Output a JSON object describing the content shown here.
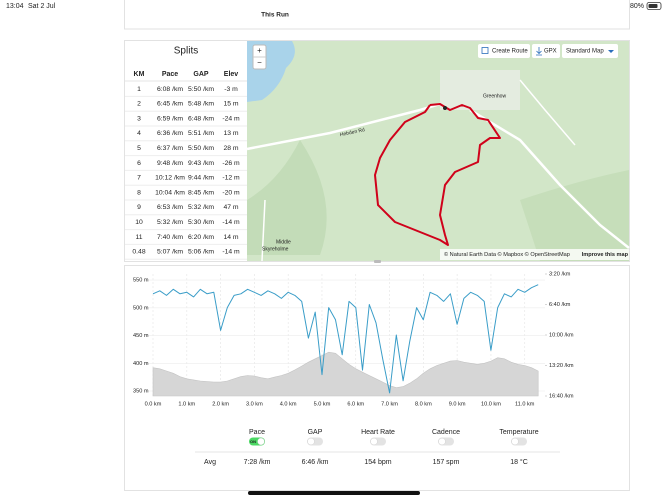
{
  "status_bar": {
    "time": "13:04",
    "date": "Sat 2 Jul",
    "battery": "80%"
  },
  "header": {
    "title": "This Run"
  },
  "splits": {
    "title": "Splits",
    "columns": [
      "KM",
      "Pace",
      "GAP",
      "Elev"
    ],
    "rows": [
      [
        "1",
        "6:08 /km",
        "5:50 /km",
        "-3 m"
      ],
      [
        "2",
        "6:45 /km",
        "5:48 /km",
        "15 m"
      ],
      [
        "3",
        "6:59 /km",
        "6:48 /km",
        "-24 m"
      ],
      [
        "4",
        "6:36 /km",
        "5:51 /km",
        "13 m"
      ],
      [
        "5",
        "6:37 /km",
        "5:50 /km",
        "28 m"
      ],
      [
        "6",
        "9:48 /km",
        "9:43 /km",
        "-26 m"
      ],
      [
        "7",
        "10:12 /km",
        "9:44 /km",
        "-12 m"
      ],
      [
        "8",
        "10:04 /km",
        "8:45 /km",
        "-20 m"
      ],
      [
        "9",
        "6:53 /km",
        "5:32 /km",
        "47 m"
      ],
      [
        "10",
        "5:32 /km",
        "5:30 /km",
        "-14 m"
      ],
      [
        "11",
        "7:40 /km",
        "6:20 /km",
        "14 m"
      ],
      [
        "0.48",
        "5:07 /km",
        "5:06 /km",
        "-14 m"
      ]
    ]
  },
  "map": {
    "zoom_in": "+",
    "zoom_out": "−",
    "create_route": "Create Route",
    "gpx": "GPX",
    "style": "Standard Map",
    "labels": [
      "Greenhow",
      "Hebden Rd",
      "Middle",
      "Skyreholme"
    ],
    "attribution": "© Natural Earth Data © Mapbox © OpenStreetMap",
    "improve": "Improve this map"
  },
  "chart_data": {
    "type": "line",
    "x": [
      0,
      0.2,
      0.4,
      0.6,
      0.8,
      1.0,
      1.2,
      1.4,
      1.6,
      1.8,
      2.0,
      2.2,
      2.4,
      2.6,
      2.8,
      3.0,
      3.2,
      3.4,
      3.6,
      3.8,
      4.0,
      4.2,
      4.4,
      4.6,
      4.8,
      5.0,
      5.2,
      5.4,
      5.6,
      5.8,
      6.0,
      6.2,
      6.4,
      6.6,
      6.8,
      7.0,
      7.2,
      7.4,
      7.6,
      7.8,
      8.0,
      8.2,
      8.4,
      8.6,
      8.8,
      9.0,
      9.2,
      9.4,
      9.6,
      9.8,
      10.0,
      10.2,
      10.4,
      10.6,
      10.8,
      11.0,
      11.2,
      11.4
    ],
    "series": [
      {
        "name": "Elevation",
        "color": "#d6d6d6",
        "axis": "y",
        "values": [
          392,
          390,
          386,
          382,
          376,
          372,
          370,
          368,
          367,
          366,
          366,
          368,
          372,
          376,
          378,
          377,
          374,
          372,
          375,
          378,
          382,
          388,
          395,
          402,
          408,
          414,
          420,
          418,
          408,
          398,
          390,
          384,
          378,
          372,
          366,
          360,
          356,
          358,
          364,
          372,
          382,
          390,
          396,
          400,
          404,
          405,
          402,
          400,
          398,
          400,
          404,
          410,
          408,
          402,
          398,
          396,
          392,
          386
        ]
      },
      {
        "name": "Pace",
        "color": "#3a9dc8",
        "axis": "y2",
        "values": [
          330,
          310,
          340,
          300,
          330,
          320,
          350,
          300,
          330,
          320,
          570,
          420,
          340,
          330,
          300,
          320,
          340,
          310,
          330,
          360,
          320,
          340,
          380,
          620,
          450,
          860,
          420,
          500,
          730,
          380,
          420,
          830,
          400,
          520,
          760,
          980,
          600,
          900,
          640,
          420,
          500,
          320,
          340,
          380,
          330,
          530,
          360,
          320,
          340,
          380,
          700,
          420,
          330,
          350,
          300,
          320,
          290,
          270
        ]
      }
    ],
    "xlim": [
      0,
      11.6
    ],
    "xticks": [
      {
        "value": 0,
        "label": "0.0 km"
      },
      {
        "value": 1,
        "label": "1.0 km"
      },
      {
        "value": 2,
        "label": "2.0 km"
      },
      {
        "value": 3,
        "label": "3.0 km"
      },
      {
        "value": 4,
        "label": "4.0 km"
      },
      {
        "value": 5,
        "label": "5.0 km"
      },
      {
        "value": 6,
        "label": "6.0 km"
      },
      {
        "value": 7,
        "label": "7.0 km"
      },
      {
        "value": 8,
        "label": "8.0 km"
      },
      {
        "value": 9,
        "label": "9.0 km"
      },
      {
        "value": 10,
        "label": "10.0 km"
      },
      {
        "value": 11,
        "label": "11.0 km"
      }
    ],
    "ylim": [
      341,
      561
    ],
    "yticks": [
      {
        "value": 350,
        "label": "350 m"
      },
      {
        "value": 400,
        "label": "400 m"
      },
      {
        "value": 450,
        "label": "450 m"
      },
      {
        "value": 500,
        "label": "500 m"
      },
      {
        "value": 550,
        "label": "550 m"
      }
    ],
    "y2lim": [
      200,
      1000
    ],
    "y2_reversed": true,
    "y2ticks": [
      {
        "value": 200,
        "label": "3:20 /km"
      },
      {
        "value": 400,
        "label": "6:40 /km"
      },
      {
        "value": 600,
        "label": "10:00 /km"
      },
      {
        "value": 800,
        "label": "13:20 /km"
      },
      {
        "value": 1000,
        "label": "16:40 /km"
      }
    ],
    "grid": true
  },
  "stats": {
    "avg_label": "Avg",
    "metrics": [
      {
        "name": "Pace",
        "avg": "7:28 /km",
        "on": true,
        "badge": "ON"
      },
      {
        "name": "GAP",
        "avg": "6:46 /km",
        "on": false
      },
      {
        "name": "Heart Rate",
        "avg": "154 bpm",
        "on": false
      },
      {
        "name": "Cadence",
        "avg": "157 spm",
        "on": false
      },
      {
        "name": "Temperature",
        "avg": "18 °C",
        "on": false
      }
    ]
  }
}
